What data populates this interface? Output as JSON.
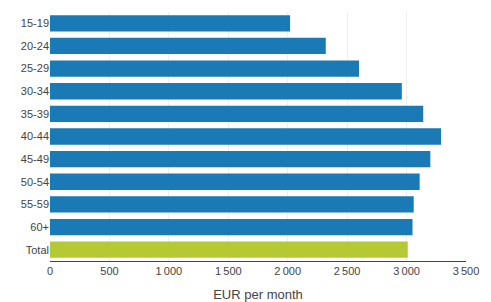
{
  "chart_data": {
    "type": "bar",
    "orientation": "horizontal",
    "xlabel": "EUR per month",
    "categories": [
      "15-19",
      "20-24",
      "25-29",
      "30-34",
      "35-39",
      "40-44",
      "45-49",
      "50-54",
      "55-59",
      "60+",
      "Total"
    ],
    "values": [
      2020,
      2320,
      2600,
      2960,
      3140,
      3290,
      3200,
      3110,
      3060,
      3050,
      3010
    ],
    "colors": [
      "#1a7ab5",
      "#1a7ab5",
      "#1a7ab5",
      "#1a7ab5",
      "#1a7ab5",
      "#1a7ab5",
      "#1a7ab5",
      "#1a7ab5",
      "#1a7ab5",
      "#1a7ab5",
      "#b5c934"
    ],
    "xlim": [
      0,
      3500
    ],
    "xticks": [
      0,
      500,
      {
        "value": 1000,
        "label": "1 000"
      },
      {
        "value": 1500,
        "label": "1 500"
      },
      {
        "value": 2000,
        "label": "2 000"
      },
      {
        "value": 2500,
        "label": "2 500"
      },
      {
        "value": 3000,
        "label": "3 000"
      },
      {
        "value": 3500,
        "label": "3 500"
      }
    ],
    "grid": true
  }
}
